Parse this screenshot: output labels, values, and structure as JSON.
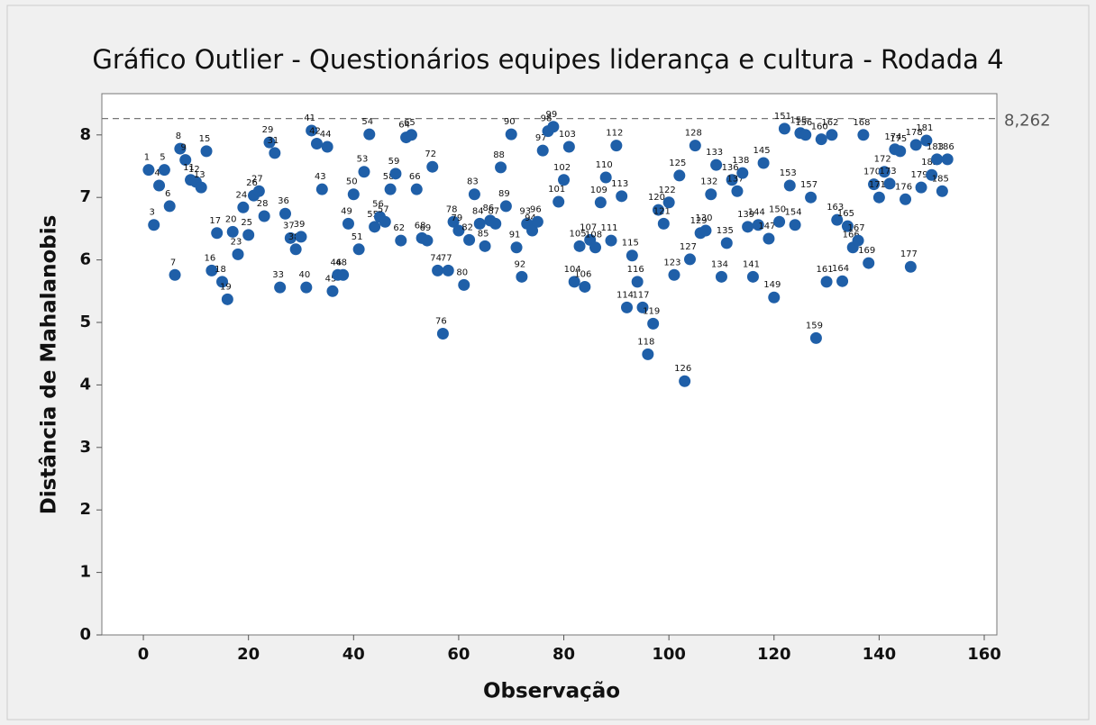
{
  "chart_data": {
    "type": "scatter",
    "title": "Gráfico Outlier - Questionários equipes liderança e cultura - Rodada 4",
    "x_label": "Observação",
    "y_label": "Distância de Mahalanobis",
    "color": "#1f5fa8",
    "x": [
      1,
      2,
      3,
      4,
      5,
      6,
      7,
      8,
      9,
      10,
      11,
      12,
      13,
      14,
      15,
      16,
      17,
      18,
      19,
      20,
      21,
      22,
      23,
      24,
      25,
      26,
      27,
      28,
      29,
      30,
      31,
      32,
      33,
      34,
      35,
      36,
      37,
      38,
      39,
      40,
      41,
      42,
      43,
      44,
      45,
      46,
      47,
      48,
      49,
      50,
      51,
      52,
      53,
      54,
      55,
      56,
      57,
      58,
      59,
      60,
      61,
      62,
      63,
      64,
      65,
      66,
      67,
      68,
      69,
      70,
      71,
      72,
      73,
      74,
      75,
      76,
      77,
      78,
      79,
      80,
      81,
      82,
      83,
      84,
      85,
      86,
      87,
      88,
      89,
      90,
      91,
      92,
      93,
      94,
      95,
      96,
      97,
      98,
      99,
      100,
      101,
      102,
      103,
      104,
      105,
      106,
      107,
      108,
      109,
      110,
      111,
      112,
      113,
      114,
      115,
      116,
      117,
      118,
      119,
      120,
      121,
      122,
      123,
      124,
      125,
      126,
      127,
      128,
      129,
      130,
      131,
      132,
      133,
      134,
      135,
      136,
      137,
      138,
      139,
      140,
      141,
      142,
      143,
      144,
      145,
      146,
      147,
      148,
      149,
      150,
      151,
      152,
      153
    ],
    "values": [
      7.44,
      6.56,
      7.19,
      7.44,
      6.86,
      5.76,
      7.78,
      7.6,
      7.28,
      7.25,
      7.16,
      7.74,
      5.83,
      6.43,
      5.65,
      5.37,
      6.45,
      6.09,
      6.84,
      6.4,
      7.03,
      7.1,
      6.7,
      7.88,
      7.71,
      5.56,
      6.74,
      6.35,
      6.17,
      6.37,
      5.56,
      8.07,
      7.86,
      7.13,
      7.81,
      5.5,
      5.76,
      5.76,
      6.58,
      7.05,
      6.17,
      7.41,
      8.01,
      6.53,
      6.69,
      6.61,
      7.13,
      7.38,
      6.31,
      7.96,
      8.0,
      7.13,
      6.35,
      6.31,
      7.49,
      5.83,
      4.82,
      5.83,
      6.61,
      6.47,
      5.6,
      6.32,
      7.05,
      6.58,
      6.22,
      6.63,
      6.58,
      7.48,
      6.86,
      8.01,
      6.2,
      5.73,
      6.58,
      6.47,
      6.61,
      7.75,
      8.06,
      8.13,
      6.93,
      7.28,
      7.81,
      5.65,
      6.22,
      5.57,
      6.32,
      6.2,
      6.92,
      7.32,
      6.31,
      7.83,
      7.02,
      5.24,
      6.07,
      5.65,
      5.24,
      4.49,
      4.98,
      6.8,
      6.58,
      6.92,
      5.76,
      7.35,
      4.06,
      6.01,
      7.83,
      6.43,
      6.47,
      7.05,
      7.52,
      5.73,
      6.27,
      7.28,
      7.1,
      7.39,
      6.53,
      5.73,
      6.56,
      7.55,
      6.34,
      5.4,
      6.61,
      8.1,
      7.19,
      6.56,
      8.03,
      8.0,
      7.0,
      4.75,
      7.93,
      5.65,
      8.0,
      6.64,
      5.66,
      6.54,
      6.2,
      6.31,
      8.0,
      5.95,
      7.21,
      7.0,
      7.41,
      7.22,
      7.77,
      7.74,
      6.97,
      5.89,
      7.84,
      7.16,
      7.91,
      7.36,
      7.61,
      7.1,
      7.61
    ],
    "point_labels": [
      1,
      3,
      4,
      5,
      6,
      7,
      8,
      9,
      11,
      12,
      13,
      15,
      16,
      17,
      18,
      19,
      20,
      23,
      24,
      25,
      26,
      27,
      28,
      29,
      31,
      33,
      36,
      37,
      38,
      39,
      40,
      41,
      42,
      43,
      44,
      45,
      46,
      48,
      49,
      50,
      51,
      53,
      54,
      55,
      56,
      57,
      58,
      59,
      62,
      64,
      65,
      66,
      68,
      69,
      72,
      74,
      76,
      77,
      78,
      79,
      80,
      82,
      83,
      84,
      85,
      86,
      87,
      88,
      89,
      90,
      91,
      92,
      93,
      94,
      96,
      97,
      98,
      99,
      101,
      102,
      103,
      104,
      105,
      106,
      107,
      108,
      109,
      110,
      111,
      112,
      113,
      114,
      115,
      116,
      117,
      118,
      119,
      120,
      121,
      122,
      123,
      125,
      126,
      127,
      128,
      129,
      130,
      132,
      133,
      134,
      135,
      136,
      137,
      138,
      139,
      141,
      144,
      145,
      147,
      149,
      150,
      151,
      153,
      154,
      155,
      156,
      157,
      159,
      160,
      161,
      162,
      163,
      164,
      165,
      166,
      167,
      168,
      169,
      170,
      171,
      172,
      173,
      174,
      175,
      176,
      177,
      178,
      179,
      181,
      182,
      183,
      185,
      186
    ],
    "reference_line": {
      "value": 8.262,
      "label": "8,262"
    },
    "xlim": [
      -7.9,
      162.4
    ],
    "xticks": [
      0,
      20,
      40,
      60,
      80,
      100,
      120,
      140,
      160
    ],
    "ylim": [
      0,
      8.66
    ],
    "yticks": [
      0,
      1,
      2,
      3,
      4,
      5,
      6,
      7,
      8
    ]
  }
}
